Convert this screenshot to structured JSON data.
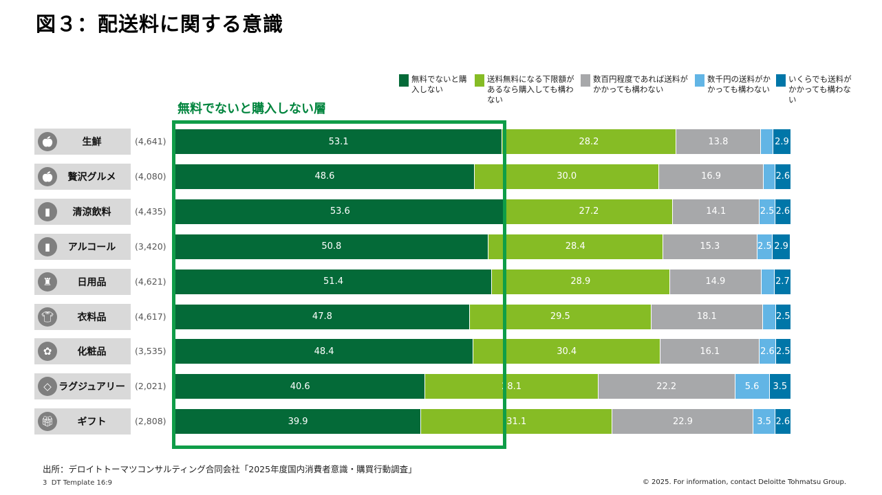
{
  "title": "図３：配送料に関する意識",
  "highlight_label": "無料でないと購入しない層",
  "source": "出所：デロイトトーマツコンサルティング合同会社「2025年度国内消費者意識・購買行動調査」",
  "page_number": "3",
  "template": "DT Template 16:9",
  "copyright": "© 2025. For information, contact Deloitte Tohmatsu Group.",
  "chart_data": {
    "type": "bar",
    "orientation": "horizontal",
    "stacked": true,
    "xlim": [
      0,
      100
    ],
    "legend_position": "top-right",
    "categories": [
      "生鮮",
      "贅沢グルメ",
      "清涼飲料",
      "アルコール",
      "日用品",
      "衣料品",
      "化粧品",
      "ラグジュアリー",
      "ギフト"
    ],
    "sample_sizes": [
      "(4,641)",
      "(4,080)",
      "(4,435)",
      "(3,420)",
      "(4,621)",
      "(4,617)",
      "(3,535)",
      "(2,021)",
      "(2,808)"
    ],
    "icons": [
      "apple-icon",
      "apple-icon",
      "bottle-icon",
      "bottle-icon",
      "spray-bottle-icon",
      "tshirt-icon",
      "cosmetics-icon",
      "diamond-icon",
      "gift-icon"
    ],
    "series": [
      {
        "name": "無料でないと購入しない",
        "color": "#046A38",
        "values": [
          53.1,
          48.6,
          53.6,
          50.8,
          51.4,
          47.8,
          48.4,
          40.6,
          39.9
        ]
      },
      {
        "name": "送料無料になる下限額があるなら購入しても構わない",
        "color": "#86BC25",
        "values": [
          28.2,
          30.0,
          27.2,
          28.4,
          28.9,
          29.5,
          30.4,
          28.1,
          31.1
        ]
      },
      {
        "name": "数百円程度であれば送料がかかっても構わない",
        "color": "#A7A8AA",
        "values": [
          13.8,
          16.9,
          14.1,
          15.3,
          14.9,
          18.1,
          16.1,
          22.2,
          22.9
        ]
      },
      {
        "name": "数千円の送料がかかっても構わない",
        "color": "#62B5E5",
        "values": [
          2.0,
          1.9,
          2.5,
          2.5,
          2.1,
          2.1,
          2.6,
          5.6,
          3.5
        ]
      },
      {
        "name": "いくらでも送料がかかっても構わない",
        "color": "#0076A8",
        "values": [
          2.9,
          2.6,
          2.6,
          2.9,
          2.7,
          2.5,
          2.5,
          3.5,
          2.6
        ]
      }
    ]
  }
}
